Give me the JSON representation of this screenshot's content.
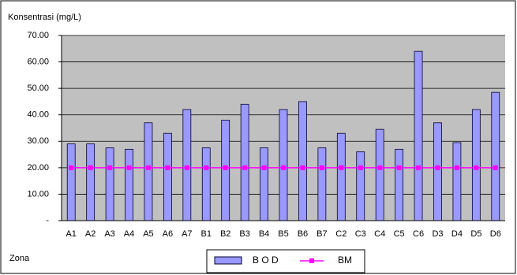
{
  "chart_data": {
    "type": "bar",
    "y_axis_label": "Konsentrasi (mg/L)",
    "x_axis_label": "Zona",
    "categories": [
      "A1",
      "A2",
      "A3",
      "A4",
      "A5",
      "A6",
      "A7",
      "B1",
      "B2",
      "B3",
      "B4",
      "B5",
      "B6",
      "B7",
      "C2",
      "C3",
      "C4",
      "C5",
      "C6",
      "D3",
      "D4",
      "D5",
      "D6"
    ],
    "series": [
      {
        "name": "B O D",
        "type": "bar",
        "color": "#9999ff",
        "values": [
          29,
          29,
          27.5,
          27,
          37,
          33,
          42,
          27.5,
          38,
          44,
          27.5,
          42,
          45,
          27.5,
          33,
          26,
          34.5,
          27,
          64,
          37,
          29.5,
          42,
          48.5
        ]
      },
      {
        "name": "BM",
        "type": "line",
        "color": "#ff00ff",
        "values": [
          20,
          20,
          20,
          20,
          20,
          20,
          20,
          20,
          20,
          20,
          20,
          20,
          20,
          20,
          20,
          20,
          20,
          20,
          20,
          20,
          20,
          20,
          20
        ]
      }
    ],
    "ylim": [
      0,
      70
    ],
    "yticks": [
      {
        "value": 0,
        "label": "-"
      },
      {
        "value": 10,
        "label": "10.00"
      },
      {
        "value": 20,
        "label": "20.00"
      },
      {
        "value": 30,
        "label": "30.00"
      },
      {
        "value": 40,
        "label": "40.00"
      },
      {
        "value": 50,
        "label": "50.00"
      },
      {
        "value": 60,
        "label": "60.00"
      },
      {
        "value": 70,
        "label": "70.00"
      }
    ],
    "grid": true,
    "legend": "bottom"
  }
}
